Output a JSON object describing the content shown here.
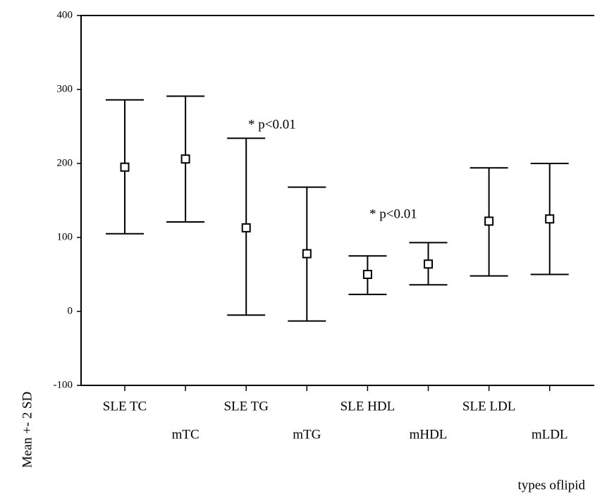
{
  "chart_data": {
    "type": "errorbar",
    "categories": [
      "SLE TC",
      "mTC",
      "SLE TG",
      "mTG",
      "SLE HDL",
      "mHDL",
      "SLE LDL",
      "mLDL"
    ],
    "mean": [
      195,
      206,
      113,
      78,
      50,
      64,
      122,
      125
    ],
    "lower": [
      105,
      121,
      -5,
      -13,
      23,
      36,
      48,
      50
    ],
    "upper": [
      286,
      291,
      234,
      168,
      75,
      93,
      194,
      200
    ],
    "color": "#000000",
    "ylim": [
      -100,
      400
    ],
    "yticks": [
      -100,
      0,
      100,
      200,
      300,
      400
    ],
    "ylabel": "Mean +- 2 SD",
    "xlabel": "types oflipid",
    "annotations": [
      "* p<0.01",
      "* p<0.01"
    ]
  }
}
